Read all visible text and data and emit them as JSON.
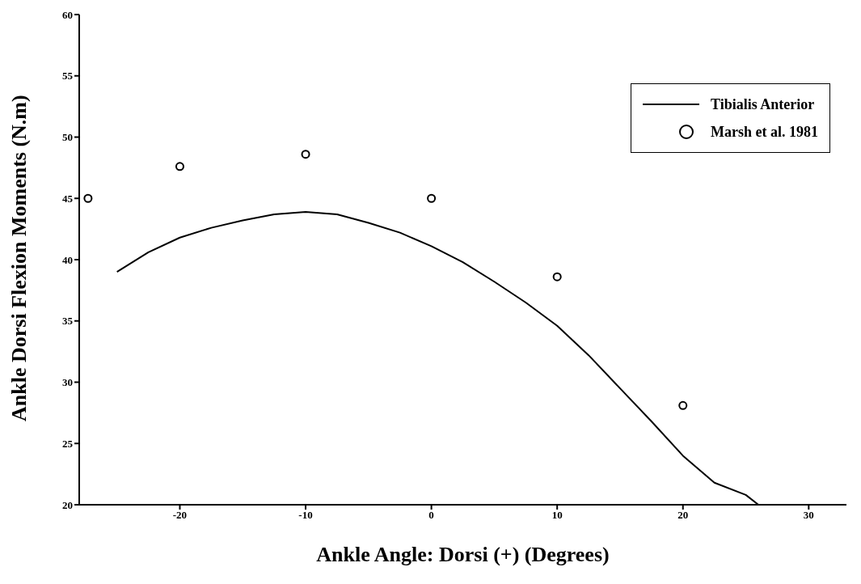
{
  "chart_data": {
    "type": "line",
    "xlabel": "Ankle Angle: Dorsi (+) (Degrees)",
    "ylabel": "Ankle Dorsi Flexion Moments (N.m)",
    "xlim": [
      -28,
      33
    ],
    "ylim": [
      20,
      60
    ],
    "xticks": [
      -20,
      -10,
      0,
      10,
      20,
      30
    ],
    "yticks": [
      20,
      25,
      30,
      35,
      40,
      45,
      50,
      55,
      60
    ],
    "grid": false,
    "legend": "top right",
    "series": [
      {
        "name": "Tibialis Anterior",
        "color": "#000000",
        "marker": "none",
        "x": [
          -25,
          -22.5,
          -20,
          -17.5,
          -15,
          -12.5,
          -10,
          -7.5,
          -5,
          -2.5,
          0,
          2.5,
          5,
          7.5,
          10,
          12.5,
          15,
          17.5,
          20,
          22.5,
          25,
          26
        ],
        "values": [
          39,
          40.6,
          41.8,
          42.6,
          43.2,
          43.7,
          43.9,
          43.7,
          43.0,
          42.2,
          41.1,
          39.8,
          38.2,
          36.5,
          34.6,
          32.2,
          29.5,
          26.8,
          24.0,
          21.8,
          20.8,
          20
        ]
      },
      {
        "name": "Marsh et al. 1981",
        "type": "scatter",
        "color": "#000000",
        "marker": "circle",
        "x": [
          -27.3,
          -20,
          -10,
          0,
          10,
          20
        ],
        "values": [
          45,
          47.6,
          48.6,
          45,
          38.6,
          28.1
        ]
      }
    ]
  }
}
